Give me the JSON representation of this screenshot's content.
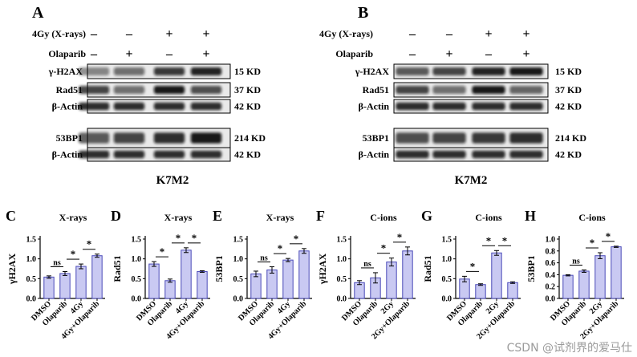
{
  "blots": [
    {
      "letter": "A",
      "cell_line": "K7M2",
      "treatment_rows": [
        {
          "label": "4Gy (X-rays)",
          "signs": [
            "–",
            "–",
            "+",
            "+"
          ]
        },
        {
          "label": "Olaparib",
          "signs": [
            "–",
            "+",
            "–",
            "+"
          ]
        }
      ],
      "bands": [
        {
          "protein": "γ-H2AX",
          "size": "15 KD",
          "intensity": [
            0.45,
            0.55,
            0.8,
            0.9
          ]
        },
        {
          "protein": "Rad51",
          "size": "37 KD",
          "intensity": [
            0.75,
            0.55,
            0.95,
            0.7
          ]
        },
        {
          "protein": "β-Actin",
          "size": "42 KD",
          "intensity": [
            0.85,
            0.85,
            0.85,
            0.85
          ]
        },
        {
          "protein": "53BP1",
          "size": "214 KD",
          "intensity": [
            0.65,
            0.75,
            0.85,
            0.95
          ]
        },
        {
          "protein": "β-Actin",
          "size": "42 KD",
          "intensity": [
            0.85,
            0.85,
            0.85,
            0.85
          ]
        }
      ]
    },
    {
      "letter": "B",
      "cell_line": "K7M2",
      "treatment_rows": [
        {
          "label": "4Gy (X-rays)",
          "signs": [
            "–",
            "–",
            "+",
            "+"
          ]
        },
        {
          "label": "Olaparib",
          "signs": [
            "–",
            "+",
            "–",
            "+"
          ]
        }
      ],
      "bands": [
        {
          "protein": "γ-H2AX",
          "size": "15 KD",
          "intensity": [
            0.65,
            0.75,
            0.9,
            0.95
          ]
        },
        {
          "protein": "Rad51",
          "size": "37 KD",
          "intensity": [
            0.75,
            0.55,
            0.95,
            0.6
          ]
        },
        {
          "protein": "β-Actin",
          "size": "42 KD",
          "intensity": [
            0.85,
            0.85,
            0.85,
            0.85
          ]
        },
        {
          "protein": "53BP1",
          "size": "214 KD",
          "intensity": [
            0.7,
            0.75,
            0.8,
            0.85
          ]
        },
        {
          "protein": "β-Actin",
          "size": "42 KD",
          "intensity": [
            0.85,
            0.85,
            0.85,
            0.85
          ]
        }
      ]
    }
  ],
  "chart_data": [
    {
      "letter": "C",
      "title": "X-rays",
      "type": "bar",
      "ylabel": "γH2AX",
      "categories": [
        "DMSO",
        "Olaparib",
        "4Gy",
        "4Gy+Olaparib"
      ],
      "values": [
        0.54,
        0.63,
        0.81,
        1.08
      ],
      "errors": [
        0.03,
        0.05,
        0.06,
        0.04
      ],
      "ylim": [
        0,
        1.5
      ],
      "yticks": [
        "0.0",
        "0.5",
        "1.0",
        "1.5"
      ],
      "sig": [
        {
          "a": 0,
          "b": 1,
          "label": "ns"
        },
        {
          "a": 1,
          "b": 2,
          "label": "*"
        },
        {
          "a": 2,
          "b": 3,
          "label": "*"
        }
      ]
    },
    {
      "letter": "D",
      "title": "X-rays",
      "type": "bar",
      "ylabel": "Rad51",
      "categories": [
        "DMSO",
        "Olaparib",
        "4Gy",
        "4Gy+Olaparib"
      ],
      "values": [
        0.87,
        0.45,
        1.22,
        0.68
      ],
      "errors": [
        0.06,
        0.04,
        0.06,
        0.02
      ],
      "ylim": [
        0,
        1.5
      ],
      "yticks": [
        "0.0",
        "0.5",
        "1.0",
        "1.5"
      ],
      "sig": [
        {
          "a": 0,
          "b": 1,
          "label": "*"
        },
        {
          "a": 1,
          "b": 2,
          "label": "*"
        },
        {
          "a": 2,
          "b": 3,
          "label": "*"
        }
      ]
    },
    {
      "letter": "E",
      "title": "X-rays",
      "type": "bar",
      "ylabel": "53BP1",
      "categories": [
        "DMSO",
        "Olaparib",
        "4Gy",
        "4Gy+Olaparib"
      ],
      "values": [
        0.62,
        0.72,
        0.97,
        1.2
      ],
      "errors": [
        0.07,
        0.08,
        0.04,
        0.06
      ],
      "ylim": [
        0,
        1.5
      ],
      "yticks": [
        "0.0",
        "0.5",
        "1.0",
        "1.5"
      ],
      "sig": [
        {
          "a": 0,
          "b": 1,
          "label": "ns"
        },
        {
          "a": 1,
          "b": 2,
          "label": "*"
        },
        {
          "a": 2,
          "b": 3,
          "label": "*"
        }
      ]
    },
    {
      "letter": "F",
      "title": "C-ions",
      "type": "bar",
      "ylabel": "γH2AX",
      "categories": [
        "DMSO",
        "Olaparib",
        "2Gy",
        "2Gy+Olaparib"
      ],
      "values": [
        0.4,
        0.52,
        0.92,
        1.2
      ],
      "errors": [
        0.05,
        0.13,
        0.1,
        0.1
      ],
      "ylim": [
        0,
        1.5
      ],
      "yticks": [
        "0.0",
        "0.5",
        "1.0",
        "1.5"
      ],
      "sig": [
        {
          "a": 0,
          "b": 1,
          "label": "ns"
        },
        {
          "a": 1,
          "b": 2,
          "label": "*"
        },
        {
          "a": 2,
          "b": 3,
          "label": "*"
        }
      ]
    },
    {
      "letter": "G",
      "title": "C-ions",
      "type": "bar",
      "ylabel": "Rad51",
      "categories": [
        "DMSO",
        "Olaparib",
        "2Gy",
        "2Gy+Olaparib"
      ],
      "values": [
        0.49,
        0.35,
        1.15,
        0.4
      ],
      "errors": [
        0.07,
        0.02,
        0.06,
        0.02
      ],
      "ylim": [
        0,
        1.5
      ],
      "yticks": [
        "0.0",
        "0.5",
        "1.0",
        "1.5"
      ],
      "sig": [
        {
          "a": 0,
          "b": 1,
          "label": "*"
        },
        {
          "a": 1,
          "b": 2,
          "label": "*"
        },
        {
          "a": 2,
          "b": 3,
          "label": "*"
        }
      ]
    },
    {
      "letter": "H",
      "title": "C-ions",
      "type": "bar",
      "ylabel": "53BP1",
      "categories": [
        "DMSO",
        "Olaparib",
        "2Gy",
        "2Gy+Olaparib"
      ],
      "values": [
        0.39,
        0.46,
        0.72,
        0.87
      ],
      "errors": [
        0.01,
        0.02,
        0.05,
        0.01
      ],
      "ylim": [
        0,
        1.0
      ],
      "yticks": [
        "0.0",
        "0.2",
        "0.4",
        "0.6",
        "0.8",
        "1.0"
      ],
      "sig": [
        {
          "a": 0,
          "b": 1,
          "label": "ns"
        },
        {
          "a": 1,
          "b": 2,
          "label": "*"
        },
        {
          "a": 2,
          "b": 3,
          "label": "*"
        }
      ]
    }
  ],
  "watermark": "CSDN @试剂界的爱马仕",
  "colors": {
    "bar_fill": "#c9c9f2",
    "bar_stroke": "#4a4ab8",
    "band": "#111111"
  }
}
